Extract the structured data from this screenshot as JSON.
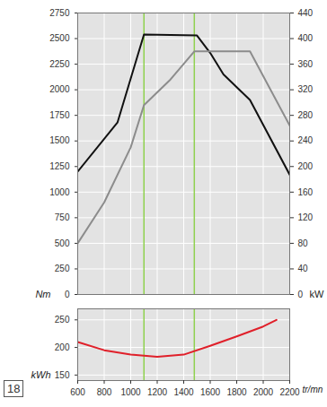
{
  "page_number": "18",
  "chart_data": [
    {
      "type": "line",
      "y_label": "Nm",
      "y2_label": "kW",
      "xlim": [
        600,
        2200
      ],
      "xticks": [
        600,
        800,
        1000,
        1200,
        1400,
        1600,
        1800,
        2000,
        2200
      ],
      "ylim": [
        0,
        2750
      ],
      "yticks": [
        0,
        250,
        500,
        750,
        1000,
        1250,
        1500,
        1750,
        2000,
        2250,
        2500,
        2750
      ],
      "y2lim": [
        0,
        440
      ],
      "y2ticks": [
        0,
        40,
        80,
        120,
        160,
        200,
        240,
        280,
        320,
        360,
        400,
        440
      ],
      "grid": true,
      "tick_labels": "y",
      "markers": {
        "x": [
          1100,
          1480
        ],
        "color": "#8fd14f"
      },
      "series": [
        {
          "color": "#111111",
          "x": [
            600,
            900,
            1100,
            1500,
            1600,
            1700,
            1900,
            2200
          ],
          "values": [
            1200,
            1680,
            2540,
            2530,
            2360,
            2150,
            1900,
            1170
          ]
        },
        {
          "axis": "y2",
          "color": "#8c8c8c",
          "x": [
            600,
            800,
            1000,
            1100,
            1300,
            1480,
            1900,
            2200
          ],
          "values": [
            80,
            144,
            230,
            296,
            336,
            380,
            380,
            264
          ]
        }
      ]
    },
    {
      "type": "line",
      "y_label": "kWh",
      "x_label": "tr/mn",
      "xlim": [
        600,
        2200
      ],
      "xticks": [
        600,
        800,
        1000,
        1200,
        1400,
        1600,
        1800,
        2000,
        2200
      ],
      "ylim": [
        140,
        270
      ],
      "yticks": [
        150,
        200,
        250
      ],
      "grid": true,
      "markers": {
        "x": [
          1100,
          1480
        ],
        "color": "#8fd14f"
      },
      "series": [
        {
          "color": "#e0202a",
          "x": [
            600,
            800,
            1000,
            1200,
            1400,
            1600,
            1800,
            2000,
            2100
          ],
          "values": [
            210,
            195,
            187,
            183,
            187,
            203,
            220,
            238,
            250
          ]
        }
      ]
    }
  ]
}
